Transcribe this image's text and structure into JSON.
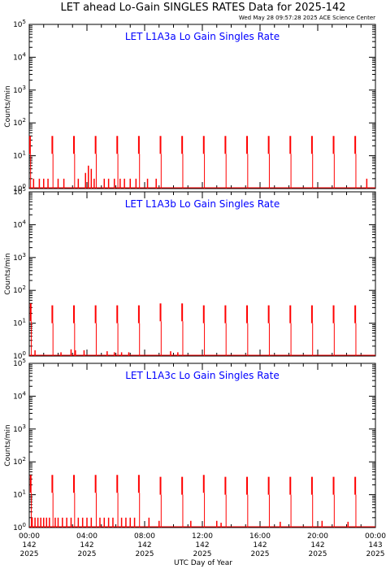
{
  "title": "LET ahead Lo-Gain SINGLES RATES Data for 2025-142",
  "subtitle": "Wed May 28 09:57:28 2025 ACE Science Center",
  "chart_data": {
    "type": "line",
    "xlabel": "UTC Day of Year",
    "ylabel": "Counts/min",
    "xlim": [
      0,
      24
    ],
    "ylim": [
      1,
      100000
    ],
    "yscale": "log",
    "y_tick_labels": [
      "10^0",
      "10^1",
      "10^2",
      "10^3",
      "10^4",
      "10^5"
    ],
    "x_ticks": [
      {
        "time": "00:00",
        "doy": "142",
        "year": "2025"
      },
      {
        "time": "04:00",
        "doy": "142",
        "year": "2025"
      },
      {
        "time": "08:00",
        "doy": "142",
        "year": "2025"
      },
      {
        "time": "12:00",
        "doy": "142",
        "year": "2025"
      },
      {
        "time": "16:00",
        "doy": "142",
        "year": "2025"
      },
      {
        "time": "20:00",
        "doy": "142",
        "year": "2025"
      },
      {
        "time": "00:00",
        "doy": "143",
        "year": "2025"
      }
    ],
    "color": "#ff0000",
    "panels": [
      {
        "title": "LET L1A3a Lo Gain Singles Rate",
        "spikes": [
          {
            "x": 0.05,
            "y": 40
          },
          {
            "x": 1.6,
            "y": 40
          },
          {
            "x": 3.1,
            "y": 40
          },
          {
            "x": 4.6,
            "y": 40
          },
          {
            "x": 6.1,
            "y": 40
          },
          {
            "x": 7.6,
            "y": 40
          },
          {
            "x": 9.1,
            "y": 40
          },
          {
            "x": 10.6,
            "y": 40
          },
          {
            "x": 12.1,
            "y": 40
          },
          {
            "x": 13.6,
            "y": 40
          },
          {
            "x": 15.1,
            "y": 40
          },
          {
            "x": 16.6,
            "y": 40
          },
          {
            "x": 18.1,
            "y": 40
          },
          {
            "x": 19.6,
            "y": 40
          },
          {
            "x": 21.1,
            "y": 40
          },
          {
            "x": 22.6,
            "y": 40
          }
        ],
        "baseline": [
          {
            "x": 0.3,
            "y": 2
          },
          {
            "x": 0.7,
            "y": 2
          },
          {
            "x": 1.0,
            "y": 2
          },
          {
            "x": 1.3,
            "y": 2
          },
          {
            "x": 2.0,
            "y": 2
          },
          {
            "x": 2.4,
            "y": 2
          },
          {
            "x": 3.4,
            "y": 2
          },
          {
            "x": 3.9,
            "y": 3
          },
          {
            "x": 4.1,
            "y": 5
          },
          {
            "x": 4.3,
            "y": 4
          },
          {
            "x": 4.5,
            "y": 2
          },
          {
            "x": 5.2,
            "y": 2
          },
          {
            "x": 5.5,
            "y": 2
          },
          {
            "x": 5.9,
            "y": 2
          },
          {
            "x": 6.3,
            "y": 2
          },
          {
            "x": 6.6,
            "y": 2
          },
          {
            "x": 7.0,
            "y": 2
          },
          {
            "x": 7.4,
            "y": 2
          },
          {
            "x": 8.2,
            "y": 2
          },
          {
            "x": 8.8,
            "y": 2
          },
          {
            "x": 23.4,
            "y": 2
          }
        ]
      },
      {
        "title": "LET L1A3b Lo Gain Singles Rate",
        "spikes": [
          {
            "x": 0.1,
            "y": 40
          },
          {
            "x": 1.6,
            "y": 35
          },
          {
            "x": 3.1,
            "y": 35
          },
          {
            "x": 4.6,
            "y": 35
          },
          {
            "x": 6.1,
            "y": 35
          },
          {
            "x": 7.6,
            "y": 35
          },
          {
            "x": 9.1,
            "y": 40
          },
          {
            "x": 10.6,
            "y": 40
          },
          {
            "x": 12.1,
            "y": 35
          },
          {
            "x": 13.6,
            "y": 35
          },
          {
            "x": 15.1,
            "y": 35
          },
          {
            "x": 16.6,
            "y": 35
          },
          {
            "x": 18.1,
            "y": 35
          },
          {
            "x": 19.6,
            "y": 35
          },
          {
            "x": 21.1,
            "y": 35
          },
          {
            "x": 22.6,
            "y": 35
          }
        ],
        "baseline": [
          {
            "x": 0.4,
            "y": 1.5
          },
          {
            "x": 2.2,
            "y": 1.3
          },
          {
            "x": 2.9,
            "y": 1.6
          },
          {
            "x": 3.2,
            "y": 1.5
          },
          {
            "x": 3.8,
            "y": 1.5
          },
          {
            "x": 5.4,
            "y": 1.4
          },
          {
            "x": 5.9,
            "y": 1.3
          },
          {
            "x": 6.4,
            "y": 1.3
          },
          {
            "x": 6.9,
            "y": 1.3
          },
          {
            "x": 9.8,
            "y": 1.4
          },
          {
            "x": 10.3,
            "y": 1.3
          }
        ]
      },
      {
        "title": "LET L1A3c Lo Gain Singles Rate",
        "spikes": [
          {
            "x": 0.1,
            "y": 40
          },
          {
            "x": 1.6,
            "y": 40
          },
          {
            "x": 3.1,
            "y": 40
          },
          {
            "x": 4.6,
            "y": 40
          },
          {
            "x": 6.1,
            "y": 40
          },
          {
            "x": 7.6,
            "y": 40
          },
          {
            "x": 9.1,
            "y": 35
          },
          {
            "x": 10.6,
            "y": 35
          },
          {
            "x": 12.1,
            "y": 40
          },
          {
            "x": 13.6,
            "y": 35
          },
          {
            "x": 15.1,
            "y": 35
          },
          {
            "x": 16.6,
            "y": 35
          },
          {
            "x": 18.1,
            "y": 35
          },
          {
            "x": 19.6,
            "y": 35
          },
          {
            "x": 21.1,
            "y": 35
          },
          {
            "x": 22.6,
            "y": 35
          }
        ],
        "baseline": [
          {
            "x": 0.2,
            "y": 2
          },
          {
            "x": 0.4,
            "y": 2
          },
          {
            "x": 0.6,
            "y": 2
          },
          {
            "x": 0.8,
            "y": 2
          },
          {
            "x": 1.0,
            "y": 2
          },
          {
            "x": 1.2,
            "y": 2
          },
          {
            "x": 1.4,
            "y": 2
          },
          {
            "x": 1.8,
            "y": 2
          },
          {
            "x": 2.0,
            "y": 2
          },
          {
            "x": 2.3,
            "y": 2
          },
          {
            "x": 2.6,
            "y": 2
          },
          {
            "x": 2.9,
            "y": 2
          },
          {
            "x": 3.4,
            "y": 2
          },
          {
            "x": 3.7,
            "y": 2
          },
          {
            "x": 4.0,
            "y": 2
          },
          {
            "x": 4.3,
            "y": 2
          },
          {
            "x": 4.9,
            "y": 2
          },
          {
            "x": 5.2,
            "y": 2
          },
          {
            "x": 5.5,
            "y": 2
          },
          {
            "x": 5.8,
            "y": 2
          },
          {
            "x": 6.4,
            "y": 2
          },
          {
            "x": 6.7,
            "y": 2
          },
          {
            "x": 7.0,
            "y": 2
          },
          {
            "x": 7.3,
            "y": 2
          },
          {
            "x": 8.3,
            "y": 2
          },
          {
            "x": 9.0,
            "y": 1.6
          },
          {
            "x": 11.2,
            "y": 1.6
          },
          {
            "x": 13.0,
            "y": 1.6
          },
          {
            "x": 13.3,
            "y": 1.4
          },
          {
            "x": 17.4,
            "y": 1.5
          },
          {
            "x": 20.3,
            "y": 1.6
          },
          {
            "x": 22.1,
            "y": 1.5
          }
        ]
      }
    ]
  }
}
